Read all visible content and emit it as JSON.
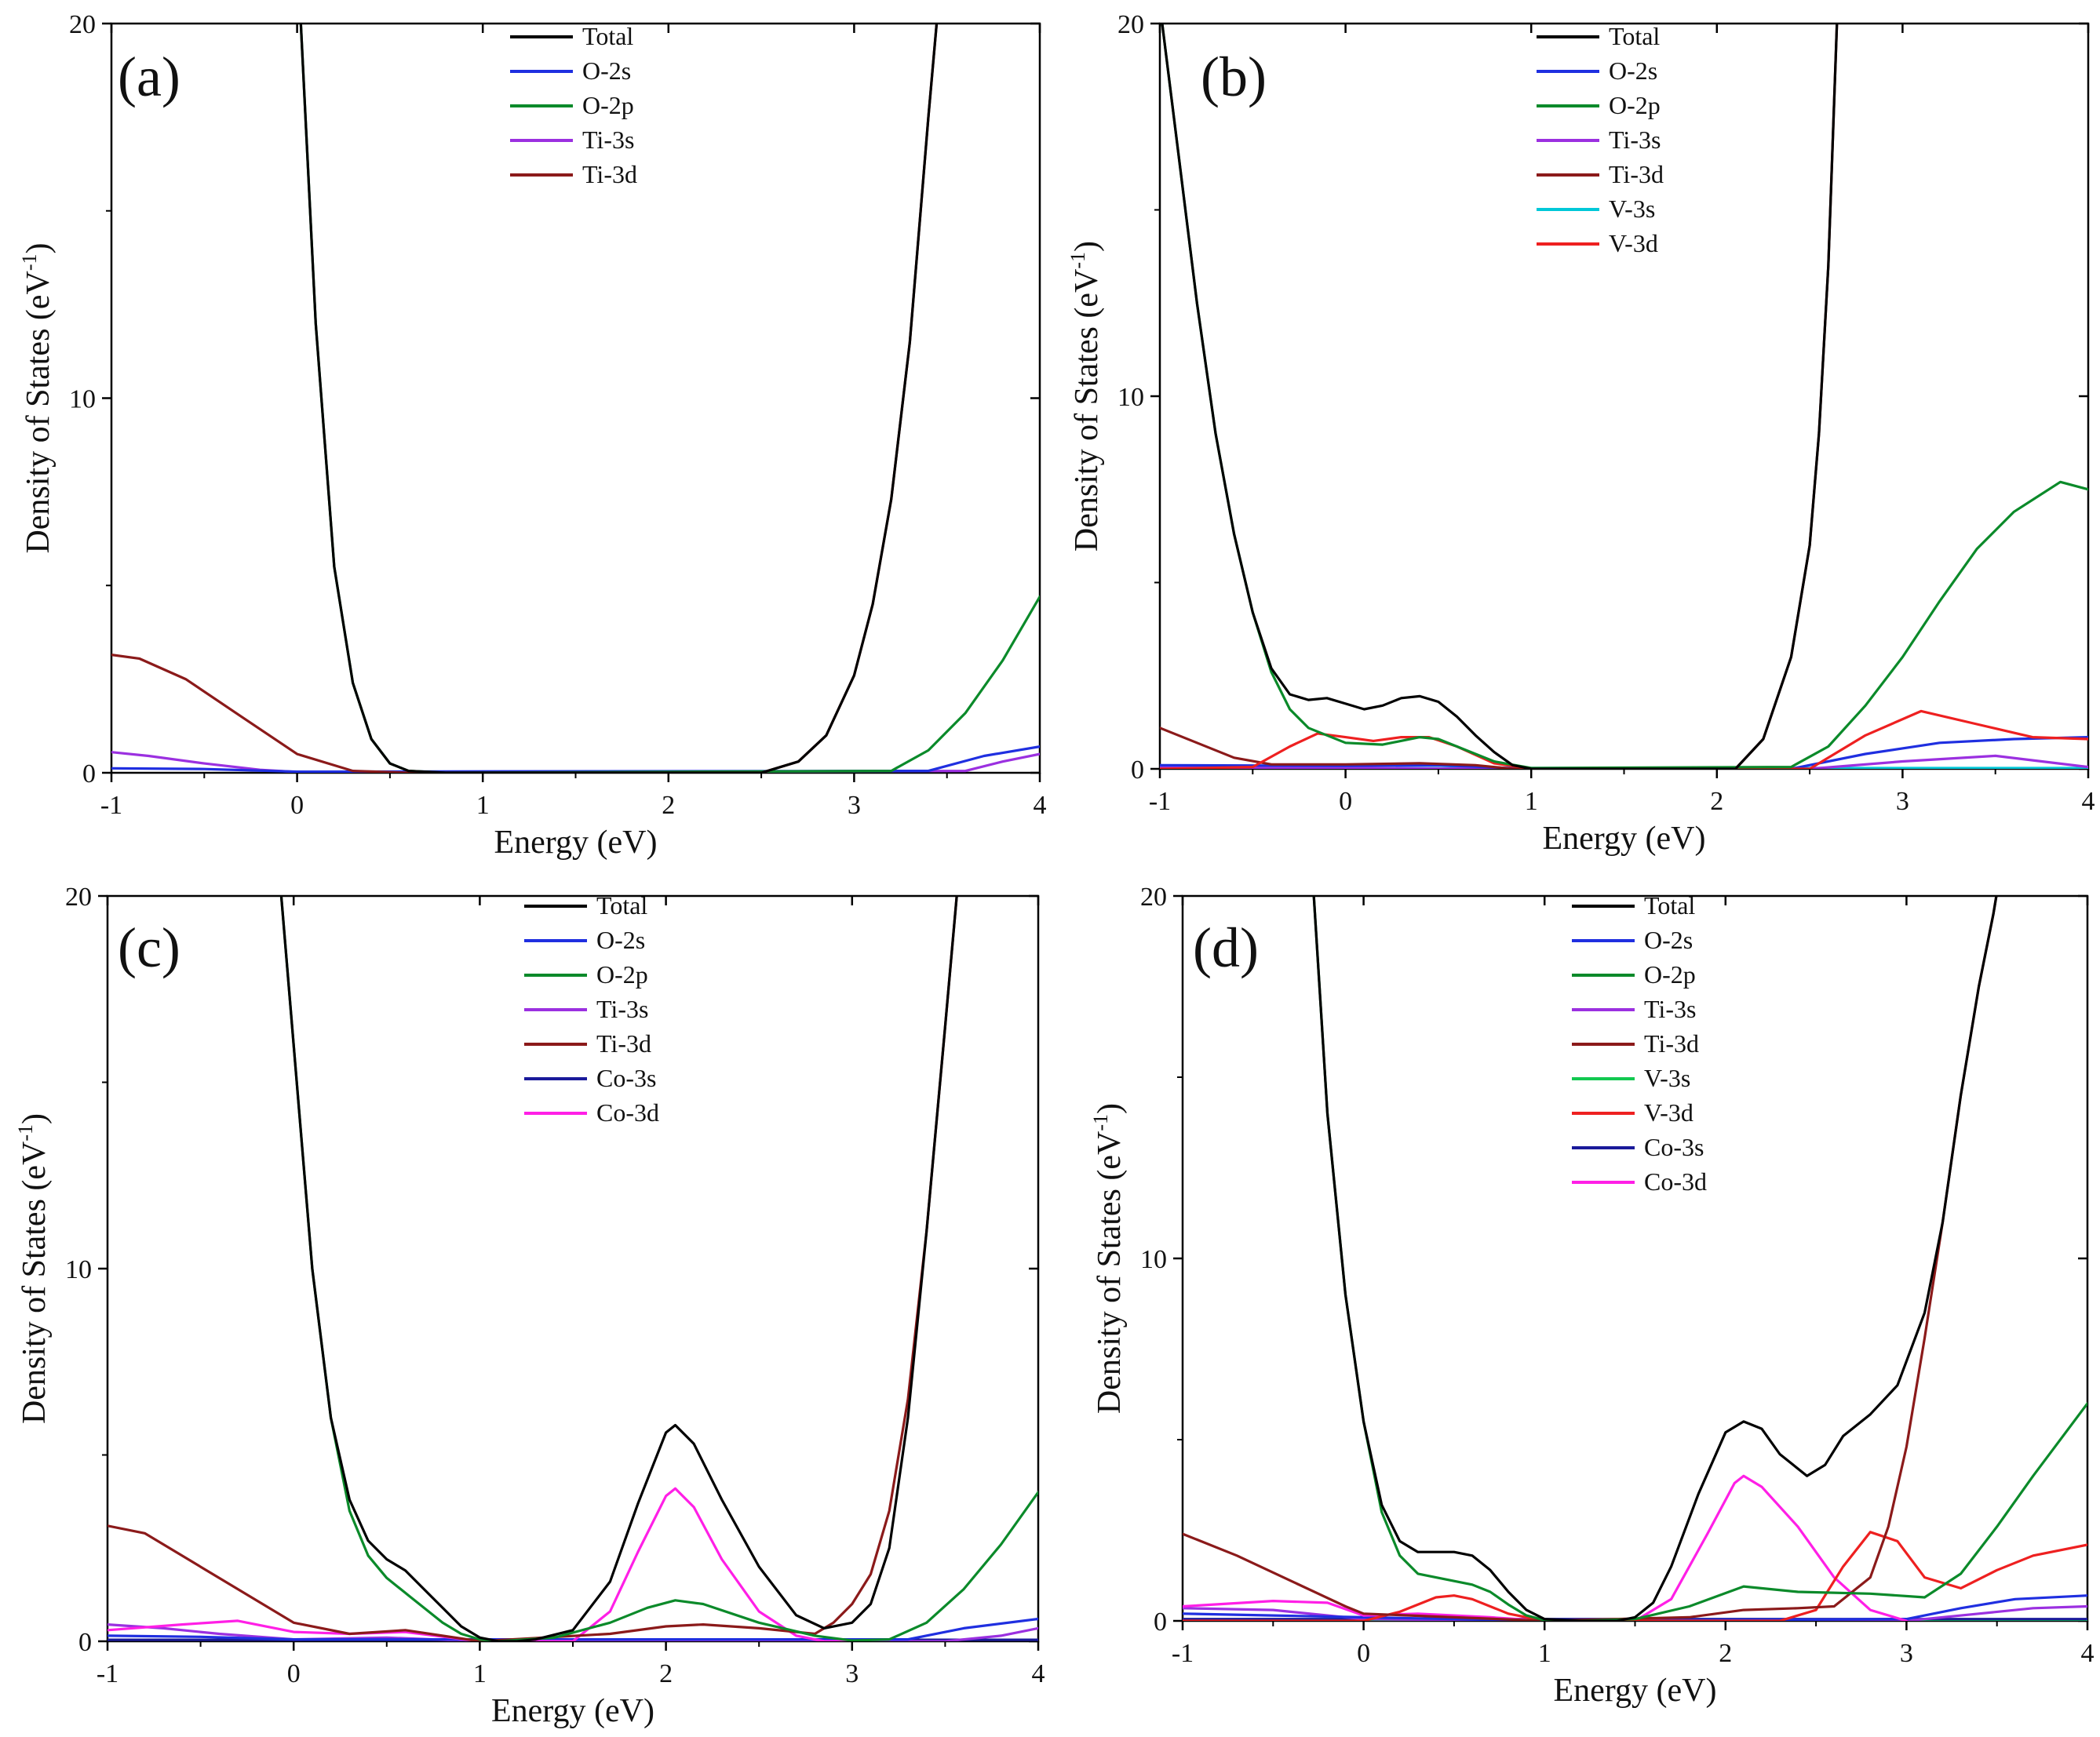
{
  "figure": {
    "xlabel": "Energy (eV)",
    "ylabel": "Density of States (eV",
    "ylabel_sup": "-1",
    "ylabel_close": ")"
  },
  "colors": {
    "Total": "#000000",
    "O-2s": "#1f2fe0",
    "O-2p": "#0b8a2a",
    "Ti-3s": "#9b30e0",
    "Ti-3d": "#8b1a1a",
    "V-3s": {
      "b": "#00c8d8",
      "d": "#12c850"
    },
    "V-3d": "#ee2020",
    "Co-3s": "#1a1a9a",
    "Co-3d": "#ff1fe6"
  },
  "chart_data": [
    {
      "id": "a",
      "panel_label": "(a)",
      "type": "line",
      "xlabel": "Energy (eV)",
      "ylabel": "Density of States (eV-1)",
      "xlim": [
        -1,
        4
      ],
      "ylim": [
        0,
        20
      ],
      "xticks": [
        "-1",
        "0",
        "1",
        "2",
        "3",
        "4"
      ],
      "yticks": [
        "0",
        "10",
        "20"
      ],
      "legend": [
        "Total",
        "O-2s",
        "O-2p",
        "Ti-3s",
        "Ti-3d"
      ],
      "series": [
        {
          "name": "Ti-3s",
          "x": [
            -1,
            -0.8,
            -0.5,
            -0.2,
            0,
            0.3,
            3.6,
            3.8,
            4
          ],
          "y": [
            0.55,
            0.45,
            0.25,
            0.08,
            0.02,
            0,
            0.05,
            0.3,
            0.5
          ]
        },
        {
          "name": "O-2s",
          "x": [
            -1,
            -0.5,
            0,
            3.4,
            3.7,
            4
          ],
          "y": [
            0.12,
            0.1,
            0.03,
            0.05,
            0.45,
            0.7
          ]
        },
        {
          "name": "O-2p",
          "x": [
            0,
            0.1,
            0.2,
            0.3,
            0.4,
            0.5,
            0.6,
            0.8,
            3.2,
            3.4,
            3.6,
            3.8,
            4
          ],
          "y": [
            22,
            12,
            5.5,
            2.4,
            0.9,
            0.25,
            0.05,
            0,
            0.05,
            0.6,
            1.6,
            3.0,
            4.7
          ]
        },
        {
          "name": "Ti-3d",
          "x": [
            -1,
            -0.85,
            -0.6,
            -0.3,
            0,
            0.3,
            0.6,
            2.5,
            2.7,
            2.85,
            3.0,
            3.1,
            3.2,
            3.3,
            3.4,
            3.48
          ],
          "y": [
            3.15,
            3.05,
            2.5,
            1.5,
            0.5,
            0.05,
            0,
            0,
            0.3,
            1.0,
            2.6,
            4.5,
            7.3,
            11.5,
            17.5,
            22
          ]
        },
        {
          "name": "Total",
          "x": [
            0,
            0.1,
            0.2,
            0.3,
            0.4,
            0.5,
            0.6,
            0.8,
            2.5,
            2.7,
            2.85,
            3.0,
            3.1,
            3.2,
            3.3,
            3.4,
            3.48
          ],
          "y": [
            22,
            12,
            5.5,
            2.4,
            0.9,
            0.25,
            0.05,
            0,
            0,
            0.3,
            1.0,
            2.6,
            4.5,
            7.3,
            11.5,
            17.5,
            22
          ]
        }
      ]
    },
    {
      "id": "b",
      "panel_label": "(b)",
      "type": "line",
      "xlabel": "Energy (eV)",
      "ylabel": "Density of States (eV-1)",
      "xlim": [
        -1,
        4
      ],
      "ylim": [
        0,
        20
      ],
      "xticks": [
        "-1",
        "0",
        "1",
        "2",
        "3",
        "4"
      ],
      "yticks": [
        "0",
        "10",
        "20"
      ],
      "legend": [
        "Total",
        "O-2s",
        "O-2p",
        "Ti-3s",
        "Ti-3d",
        "V-3s",
        "V-3d"
      ],
      "series": [
        {
          "name": "V-3s",
          "x": [
            -1,
            4
          ],
          "y": [
            0.02,
            0.02
          ]
        },
        {
          "name": "Ti-3s",
          "x": [
            -1,
            -0.5,
            0,
            1,
            2.5,
            3.0,
            3.5,
            4
          ],
          "y": [
            0.05,
            0.03,
            0.02,
            0,
            0,
            0.2,
            0.35,
            0.05
          ]
        },
        {
          "name": "O-2s",
          "x": [
            -1,
            0,
            0.5,
            1,
            2.4,
            2.8,
            3.2,
            3.6,
            4
          ],
          "y": [
            0.1,
            0.08,
            0.1,
            0,
            0,
            0.4,
            0.7,
            0.8,
            0.85
          ]
        },
        {
          "name": "Ti-3d",
          "x": [
            -1,
            -0.8,
            -0.6,
            -0.4,
            0,
            0.4,
            0.7,
            0.9,
            2.1,
            2.25,
            2.4,
            2.5,
            2.55,
            2.6,
            2.65
          ],
          "y": [
            1.1,
            0.7,
            0.3,
            0.12,
            0.12,
            0.15,
            0.1,
            0,
            0,
            0.8,
            3.0,
            6.0,
            9.0,
            13.5,
            20.5
          ]
        },
        {
          "name": "V-3d",
          "x": [
            -1,
            -0.5,
            -0.3,
            -0.15,
            0,
            0.15,
            0.3,
            0.45,
            0.6,
            0.8,
            1.0,
            2.5,
            2.8,
            3.1,
            3.4,
            3.7,
            4
          ],
          "y": [
            0,
            0.05,
            0.6,
            0.95,
            0.85,
            0.75,
            0.85,
            0.85,
            0.6,
            0.15,
            0,
            0,
            0.9,
            1.55,
            1.2,
            0.85,
            0.8
          ]
        },
        {
          "name": "O-2p",
          "x": [
            -1,
            -0.9,
            -0.8,
            -0.7,
            -0.6,
            -0.5,
            -0.4,
            -0.3,
            -0.2,
            0,
            0.2,
            0.4,
            0.5,
            0.6,
            0.8,
            1.0,
            2.4,
            2.6,
            2.8,
            3.0,
            3.2,
            3.4,
            3.6,
            3.85,
            4
          ],
          "y": [
            20.5,
            16.5,
            12.5,
            9.0,
            6.3,
            4.2,
            2.6,
            1.6,
            1.1,
            0.7,
            0.65,
            0.85,
            0.8,
            0.6,
            0.2,
            0.02,
            0.05,
            0.6,
            1.7,
            3.0,
            4.5,
            5.9,
            6.9,
            7.7,
            7.5
          ]
        },
        {
          "name": "Total",
          "x": [
            -1,
            -0.9,
            -0.8,
            -0.7,
            -0.6,
            -0.5,
            -0.4,
            -0.3,
            -0.2,
            -0.1,
            0,
            0.1,
            0.2,
            0.3,
            0.4,
            0.5,
            0.6,
            0.7,
            0.8,
            0.9,
            1.0,
            2.1,
            2.25,
            2.4,
            2.5,
            2.55,
            2.6,
            2.65
          ],
          "y": [
            20.5,
            16.5,
            12.5,
            9.0,
            6.3,
            4.2,
            2.7,
            2.0,
            1.85,
            1.9,
            1.75,
            1.6,
            1.7,
            1.9,
            1.95,
            1.8,
            1.4,
            0.9,
            0.45,
            0.1,
            0,
            0,
            0.8,
            3.0,
            6.0,
            9.0,
            13.5,
            20.5
          ]
        }
      ]
    },
    {
      "id": "c",
      "panel_label": "(c)",
      "type": "line",
      "xlabel": "Energy (eV)",
      "ylabel": "Density of States (eV-1)",
      "xlim": [
        -1,
        4
      ],
      "ylim": [
        0,
        20
      ],
      "xticks": [
        "-1",
        "0",
        "1",
        "2",
        "3",
        "4"
      ],
      "yticks": [
        "0",
        "10",
        "20"
      ],
      "legend": [
        "Total",
        "O-2s",
        "O-2p",
        "Ti-3s",
        "Ti-3d",
        "Co-3s",
        "Co-3d"
      ],
      "series": [
        {
          "name": "Co-3s",
          "x": [
            -1,
            4
          ],
          "y": [
            0.04,
            0.04
          ]
        },
        {
          "name": "Ti-3s",
          "x": [
            -1,
            -0.7,
            -0.4,
            0,
            0.5,
            1,
            3.5,
            3.8,
            4
          ],
          "y": [
            0.45,
            0.35,
            0.2,
            0.05,
            0.1,
            0,
            0,
            0.15,
            0.35
          ]
        },
        {
          "name": "O-2s",
          "x": [
            -1,
            -0.5,
            0,
            3.3,
            3.6,
            4
          ],
          "y": [
            0.15,
            0.12,
            0.05,
            0.05,
            0.35,
            0.6
          ]
        },
        {
          "name": "Co-3d",
          "x": [
            -1,
            -0.6,
            -0.3,
            0,
            0.3,
            0.6,
            1.0,
            1.5,
            1.7,
            1.85,
            2.0,
            2.05,
            2.15,
            2.3,
            2.5,
            2.7,
            2.85,
            3.0
          ],
          "y": [
            0.3,
            0.45,
            0.55,
            0.25,
            0.2,
            0.25,
            0,
            0,
            0.8,
            2.4,
            3.9,
            4.1,
            3.6,
            2.2,
            0.8,
            0.15,
            0,
            0
          ]
        },
        {
          "name": "Ti-3d",
          "x": [
            -1,
            -0.8,
            -0.6,
            -0.3,
            0,
            0.3,
            0.6,
            1.0,
            1.7,
            2.0,
            2.2,
            2.5,
            2.8,
            2.9,
            3.0,
            3.1,
            3.2,
            3.3,
            3.4,
            3.5,
            3.58
          ],
          "y": [
            3.1,
            2.9,
            2.3,
            1.4,
            0.5,
            0.2,
            0.3,
            0,
            0.2,
            0.4,
            0.45,
            0.35,
            0.2,
            0.5,
            1.0,
            1.8,
            3.5,
            6.5,
            11.0,
            16.5,
            21
          ]
        },
        {
          "name": "O-2p",
          "x": [
            -0.1,
            0,
            0.1,
            0.2,
            0.3,
            0.4,
            0.5,
            0.6,
            0.7,
            0.8,
            0.9,
            1.0,
            1.1,
            1.4,
            1.7,
            1.9,
            2.05,
            2.2,
            2.5,
            2.8,
            3.0,
            3.2,
            3.4,
            3.6,
            3.8,
            4
          ],
          "y": [
            22,
            16,
            10,
            6,
            3.5,
            2.3,
            1.7,
            1.3,
            0.9,
            0.5,
            0.2,
            0.05,
            0,
            0.1,
            0.5,
            0.9,
            1.1,
            1.0,
            0.5,
            0.15,
            0.02,
            0.05,
            0.5,
            1.4,
            2.6,
            4.0
          ]
        },
        {
          "name": "Total",
          "x": [
            -0.1,
            0,
            0.1,
            0.2,
            0.3,
            0.4,
            0.5,
            0.6,
            0.7,
            0.8,
            0.9,
            1.0,
            1.1,
            1.2,
            1.3,
            1.5,
            1.7,
            1.85,
            2.0,
            2.05,
            2.15,
            2.3,
            2.5,
            2.7,
            2.85,
            3.0,
            3.1,
            3.2,
            3.3,
            3.4,
            3.5,
            3.58
          ],
          "y": [
            22,
            16,
            10,
            6,
            3.8,
            2.7,
            2.2,
            1.9,
            1.4,
            0.9,
            0.4,
            0.1,
            0,
            0,
            0.05,
            0.3,
            1.6,
            3.7,
            5.6,
            5.8,
            5.3,
            3.8,
            2.0,
            0.7,
            0.35,
            0.5,
            1.0,
            2.5,
            6.0,
            11.0,
            16.5,
            21
          ]
        }
      ]
    },
    {
      "id": "d",
      "panel_label": "(d)",
      "type": "line",
      "xlabel": "Energy (eV)",
      "ylabel": "Density of States (eV-1)",
      "xlim": [
        -1,
        4
      ],
      "ylim": [
        0,
        20
      ],
      "xticks": [
        "-1",
        "0",
        "1",
        "2",
        "3",
        "4"
      ],
      "yticks": [
        "0",
        "10",
        "20"
      ],
      "legend": [
        "Total",
        "O-2s",
        "O-2p",
        "Ti-3s",
        "Ti-3d",
        "V-3s",
        "V-3d",
        "Co-3s",
        "Co-3d"
      ],
      "series": [
        {
          "name": "V-3s",
          "x": [
            -1,
            4
          ],
          "y": [
            0.02,
            0.02
          ]
        },
        {
          "name": "Co-3s",
          "x": [
            -1,
            4
          ],
          "y": [
            0.05,
            0.05
          ]
        },
        {
          "name": "Ti-3s",
          "x": [
            -1,
            -0.5,
            0,
            1,
            3.0,
            3.4,
            3.7,
            4
          ],
          "y": [
            0.35,
            0.3,
            0.05,
            0,
            0,
            0.2,
            0.35,
            0.4
          ]
        },
        {
          "name": "O-2s",
          "x": [
            -1,
            -0.5,
            0,
            1,
            3.0,
            3.3,
            3.6,
            4
          ],
          "y": [
            0.2,
            0.15,
            0.1,
            0,
            0.05,
            0.35,
            0.6,
            0.7
          ]
        },
        {
          "name": "Co-3d",
          "x": [
            -1,
            -0.5,
            -0.2,
            0,
            0.3,
            0.7,
            1.0,
            1.5,
            1.7,
            1.9,
            2.05,
            2.1,
            2.2,
            2.4,
            2.6,
            2.8,
            3.0
          ],
          "y": [
            0.4,
            0.55,
            0.5,
            0.15,
            0.2,
            0.1,
            0,
            0,
            0.6,
            2.4,
            3.8,
            4.0,
            3.7,
            2.6,
            1.2,
            0.3,
            0
          ]
        },
        {
          "name": "V-3d",
          "x": [
            -1,
            0,
            0.2,
            0.4,
            0.5,
            0.6,
            0.8,
            1.0,
            2.3,
            2.5,
            2.65,
            2.8,
            2.95,
            3.1,
            3.3,
            3.5,
            3.7,
            4
          ],
          "y": [
            0,
            0,
            0.25,
            0.65,
            0.7,
            0.6,
            0.2,
            0,
            0,
            0.3,
            1.5,
            2.45,
            2.2,
            1.2,
            0.9,
            1.4,
            1.8,
            2.1
          ]
        },
        {
          "name": "Ti-3d",
          "x": [
            -1,
            -0.7,
            -0.4,
            -0.1,
            0,
            0.5,
            1.0,
            1.8,
            2.1,
            2.4,
            2.6,
            2.8,
            2.9,
            3.0,
            3.1,
            3.2,
            3.3,
            3.4,
            3.48,
            3.53
          ],
          "y": [
            2.4,
            1.8,
            1.1,
            0.4,
            0.2,
            0.1,
            0,
            0.1,
            0.3,
            0.35,
            0.4,
            1.2,
            2.6,
            4.8,
            7.8,
            11.0,
            14.5,
            17.5,
            19.5,
            21
          ]
        },
        {
          "name": "O-2p",
          "x": [
            -0.3,
            -0.2,
            -0.1,
            0,
            0.1,
            0.2,
            0.3,
            0.4,
            0.5,
            0.6,
            0.7,
            0.8,
            0.9,
            1.0,
            1.2,
            1.5,
            1.8,
            2.1,
            2.4,
            2.8,
            3.1,
            3.3,
            3.5,
            3.7,
            4
          ],
          "y": [
            22,
            14,
            9,
            5.5,
            3.0,
            1.8,
            1.3,
            1.2,
            1.1,
            1.0,
            0.8,
            0.45,
            0.15,
            0.02,
            0,
            0.05,
            0.4,
            0.95,
            0.8,
            0.75,
            0.65,
            1.3,
            2.6,
            4.0,
            6.0
          ]
        },
        {
          "name": "Total",
          "x": [
            -0.3,
            -0.2,
            -0.1,
            0,
            0.1,
            0.2,
            0.3,
            0.4,
            0.5,
            0.6,
            0.7,
            0.8,
            0.9,
            1.0,
            1.2,
            1.4,
            1.5,
            1.6,
            1.7,
            1.85,
            2.0,
            2.1,
            2.2,
            2.3,
            2.45,
            2.55,
            2.65,
            2.8,
            2.95,
            3.1,
            3.2,
            3.3,
            3.4,
            3.48,
            3.53
          ],
          "y": [
            22,
            14,
            9,
            5.5,
            3.2,
            2.2,
            1.9,
            1.9,
            1.9,
            1.8,
            1.4,
            0.8,
            0.3,
            0.05,
            0,
            0,
            0.1,
            0.5,
            1.5,
            3.5,
            5.2,
            5.5,
            5.3,
            4.6,
            4.0,
            4.3,
            5.1,
            5.7,
            6.5,
            8.5,
            11.0,
            14.5,
            17.5,
            19.5,
            21
          ]
        }
      ]
    }
  ]
}
